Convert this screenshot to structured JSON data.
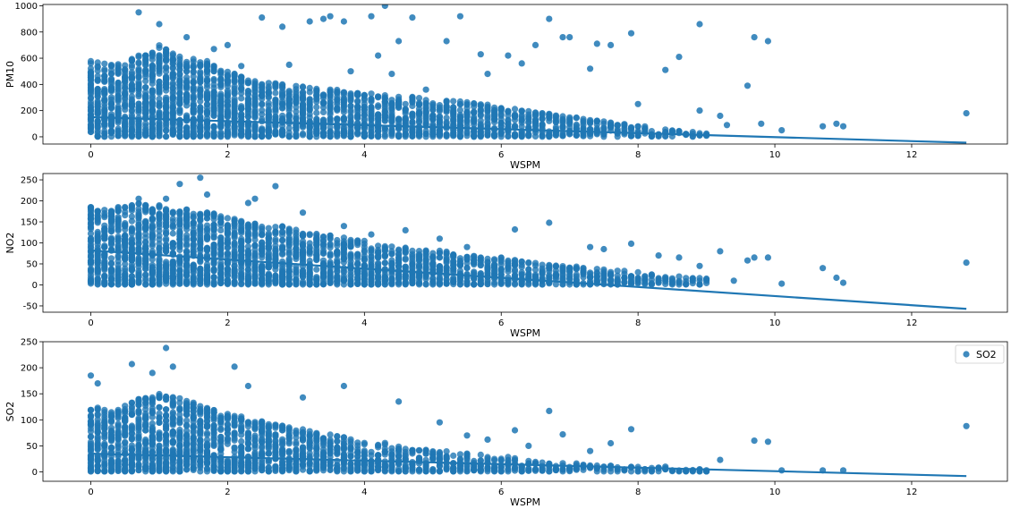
{
  "colors": {
    "series": "#1f77b4",
    "axis": "#000000",
    "background": "#ffffff"
  },
  "chart_data": [
    {
      "type": "scatter",
      "xlabel": "WSPM",
      "ylabel": "PM10",
      "xlim": [
        -0.7,
        13.4
      ],
      "ylim": [
        -55,
        1010
      ],
      "xticks": [
        0,
        2,
        4,
        6,
        8,
        10,
        12
      ],
      "yticks": [
        0,
        200,
        400,
        600,
        800,
        1000
      ],
      "legend": null,
      "series": [
        {
          "band_max": [
            [
              0,
              580
            ],
            [
              0.2,
              560
            ],
            [
              0.4,
              560
            ],
            [
              0.6,
              600
            ],
            [
              0.8,
              650
            ],
            [
              1.0,
              700
            ],
            [
              1.2,
              650
            ],
            [
              1.4,
              620
            ],
            [
              1.6,
              600
            ],
            [
              1.8,
              560
            ],
            [
              2.0,
              520
            ],
            [
              2.4,
              440
            ],
            [
              2.8,
              400
            ],
            [
              3.2,
              380
            ],
            [
              3.6,
              360
            ],
            [
              4.0,
              340
            ],
            [
              4.4,
              320
            ],
            [
              4.8,
              300
            ],
            [
              5.2,
              280
            ],
            [
              5.6,
              260
            ],
            [
              6.0,
              230
            ],
            [
              6.4,
              200
            ],
            [
              6.8,
              170
            ],
            [
              7.2,
              140
            ],
            [
              7.6,
              110
            ],
            [
              8.0,
              90
            ],
            [
              8.4,
              60
            ],
            [
              8.8,
              40
            ],
            [
              9.0,
              30
            ]
          ],
          "outliers": [
            [
              0.7,
              950
            ],
            [
              1.0,
              860
            ],
            [
              1.4,
              760
            ],
            [
              2.0,
              700
            ],
            [
              2.5,
              910
            ],
            [
              2.8,
              840
            ],
            [
              3.2,
              880
            ],
            [
              3.4,
              900
            ],
            [
              3.5,
              920
            ],
            [
              3.7,
              880
            ],
            [
              4.1,
              920
            ],
            [
              4.3,
              1000
            ],
            [
              4.7,
              910
            ],
            [
              4.5,
              730
            ],
            [
              4.2,
              620
            ],
            [
              5.4,
              920
            ],
            [
              5.2,
              730
            ],
            [
              5.7,
              630
            ],
            [
              6.1,
              620
            ],
            [
              6.5,
              700
            ],
            [
              6.7,
              900
            ],
            [
              6.9,
              760
            ],
            [
              7.0,
              760
            ],
            [
              7.4,
              710
            ],
            [
              7.6,
              700
            ],
            [
              7.9,
              790
            ],
            [
              8.4,
              510
            ],
            [
              8.6,
              610
            ],
            [
              8.9,
              860
            ],
            [
              9.6,
              390
            ],
            [
              9.7,
              760
            ],
            [
              9.9,
              730
            ],
            [
              10.1,
              50
            ],
            [
              10.7,
              80
            ],
            [
              10.9,
              100
            ],
            [
              11.0,
              80
            ],
            [
              12.8,
              180
            ],
            [
              9.8,
              100
            ],
            [
              9.3,
              90
            ],
            [
              7.3,
              520
            ],
            [
              6.3,
              560
            ],
            [
              5.8,
              480
            ],
            [
              4.9,
              360
            ],
            [
              4.4,
              480
            ],
            [
              3.8,
              500
            ],
            [
              2.9,
              550
            ],
            [
              2.2,
              540
            ],
            [
              1.8,
              670
            ],
            [
              8.0,
              250
            ],
            [
              8.9,
              200
            ],
            [
              9.2,
              160
            ]
          ],
          "trend": [
            [
              0,
              150
            ],
            [
              12.8,
              -45
            ]
          ]
        }
      ]
    },
    {
      "type": "scatter",
      "xlabel": "WSPM",
      "ylabel": "NO2",
      "xlim": [
        -0.7,
        13.4
      ],
      "ylim": [
        -65,
        265
      ],
      "xticks": [
        0,
        2,
        4,
        6,
        8,
        10,
        12
      ],
      "yticks": [
        -50,
        0,
        50,
        100,
        150,
        200,
        250
      ],
      "legend": null,
      "series": [
        {
          "band_max": [
            [
              0,
              190
            ],
            [
              0.2,
              180
            ],
            [
              0.4,
              185
            ],
            [
              0.6,
              195
            ],
            [
              0.8,
              195
            ],
            [
              1.0,
              190
            ],
            [
              1.2,
              185
            ],
            [
              1.4,
              180
            ],
            [
              1.6,
              175
            ],
            [
              1.8,
              170
            ],
            [
              2.0,
              160
            ],
            [
              2.4,
              150
            ],
            [
              2.8,
              140
            ],
            [
              3.2,
              125
            ],
            [
              3.6,
              115
            ],
            [
              4.0,
              105
            ],
            [
              4.4,
              95
            ],
            [
              4.8,
              85
            ],
            [
              5.2,
              80
            ],
            [
              5.6,
              72
            ],
            [
              6.0,
              65
            ],
            [
              6.4,
              55
            ],
            [
              6.8,
              48
            ],
            [
              7.2,
              42
            ],
            [
              7.6,
              38
            ],
            [
              8.0,
              30
            ],
            [
              8.4,
              22
            ],
            [
              8.8,
              18
            ],
            [
              9.0,
              15
            ]
          ],
          "outliers": [
            [
              1.3,
              240
            ],
            [
              1.6,
              255
            ],
            [
              1.7,
              215
            ],
            [
              1.1,
              205
            ],
            [
              0.7,
              205
            ],
            [
              2.4,
              205
            ],
            [
              2.7,
              235
            ],
            [
              2.3,
              195
            ],
            [
              3.1,
              172
            ],
            [
              3.7,
              140
            ],
            [
              4.1,
              120
            ],
            [
              4.6,
              130
            ],
            [
              5.1,
              110
            ],
            [
              5.5,
              90
            ],
            [
              6.2,
              132
            ],
            [
              6.7,
              148
            ],
            [
              7.3,
              90
            ],
            [
              7.5,
              85
            ],
            [
              7.9,
              98
            ],
            [
              8.3,
              70
            ],
            [
              8.6,
              65
            ],
            [
              9.2,
              80
            ],
            [
              9.6,
              58
            ],
            [
              9.7,
              65
            ],
            [
              9.9,
              65
            ],
            [
              10.1,
              3
            ],
            [
              10.7,
              40
            ],
            [
              10.9,
              17
            ],
            [
              11.0,
              5
            ],
            [
              12.8,
              53
            ],
            [
              9.4,
              10
            ],
            [
              8.9,
              45
            ]
          ],
          "trend": [
            [
              0,
              82
            ],
            [
              12.8,
              -57
            ]
          ]
        }
      ]
    },
    {
      "type": "scatter",
      "xlabel": "WSPM",
      "ylabel": "SO2",
      "xlim": [
        -0.7,
        13.4
      ],
      "ylim": [
        -18,
        250
      ],
      "xticks": [
        0,
        2,
        4,
        6,
        8,
        10,
        12
      ],
      "yticks": [
        0,
        50,
        100,
        150,
        200,
        250
      ],
      "legend": "top-right",
      "series": [
        {
          "name": "SO2",
          "band_max": [
            [
              0,
              130
            ],
            [
              0.2,
              120
            ],
            [
              0.4,
              125
            ],
            [
              0.6,
              135
            ],
            [
              0.8,
              145
            ],
            [
              1.0,
              150
            ],
            [
              1.2,
              145
            ],
            [
              1.4,
              140
            ],
            [
              1.6,
              130
            ],
            [
              1.8,
              120
            ],
            [
              2.0,
              115
            ],
            [
              2.4,
              100
            ],
            [
              2.8,
              90
            ],
            [
              3.2,
              80
            ],
            [
              3.6,
              70
            ],
            [
              4.0,
              60
            ],
            [
              4.4,
              55
            ],
            [
              4.8,
              45
            ],
            [
              5.2,
              40
            ],
            [
              5.6,
              35
            ],
            [
              6.0,
              30
            ],
            [
              6.4,
              25
            ],
            [
              6.8,
              20
            ],
            [
              7.2,
              16
            ],
            [
              7.6,
              12
            ],
            [
              8.0,
              10
            ],
            [
              8.4,
              8
            ],
            [
              8.8,
              6
            ],
            [
              9.0,
              5
            ]
          ],
          "outliers": [
            [
              1.1,
              238
            ],
            [
              0.6,
              207
            ],
            [
              1.2,
              202
            ],
            [
              2.1,
              202
            ],
            [
              0,
              185
            ],
            [
              0.1,
              170
            ],
            [
              0.9,
              190
            ],
            [
              3.7,
              165
            ],
            [
              2.3,
              165
            ],
            [
              3.1,
              143
            ],
            [
              4.5,
              135
            ],
            [
              5.1,
              95
            ],
            [
              5.5,
              70
            ],
            [
              6.2,
              80
            ],
            [
              6.7,
              117
            ],
            [
              6.9,
              72
            ],
            [
              7.3,
              40
            ],
            [
              7.9,
              82
            ],
            [
              8.4,
              10
            ],
            [
              8.9,
              5
            ],
            [
              9.2,
              23
            ],
            [
              9.7,
              60
            ],
            [
              9.9,
              58
            ],
            [
              10.1,
              3
            ],
            [
              10.7,
              3
            ],
            [
              11.0,
              3
            ],
            [
              12.8,
              88
            ],
            [
              7.6,
              55
            ],
            [
              6.4,
              50
            ],
            [
              5.8,
              62
            ]
          ],
          "trend": [
            [
              0,
              35
            ],
            [
              12.8,
              -8
            ]
          ]
        }
      ]
    }
  ]
}
